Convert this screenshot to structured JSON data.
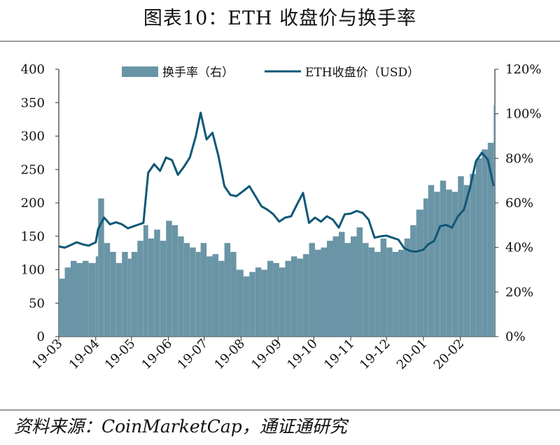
{
  "title": "图表10：ETH 收盘价与换手率",
  "source": "资料来源：CoinMarketCap，通证通研究",
  "colors": {
    "bars": "#6a95a6",
    "line": "#0f5777",
    "axis": "#333333"
  },
  "chart_data": {
    "type": "bar+line",
    "title": "图表10：ETH 收盘价与换手率",
    "xlabel": "",
    "ylabel": "",
    "x_ticks": [
      "19-03",
      "19-04",
      "19-05",
      "19-06",
      "19-07",
      "19-08",
      "19-09",
      "19-10",
      "19-11",
      "19-12",
      "20-01",
      "20-02"
    ],
    "y_left": {
      "min": 0,
      "max": 400,
      "ticks": [
        "0",
        "50",
        "100",
        "150",
        "200",
        "250",
        "300",
        "350",
        "400"
      ]
    },
    "y_right": {
      "min": 0,
      "max": 120,
      "ticks": [
        "0%",
        "20%",
        "40%",
        "60%",
        "80%",
        "100%",
        "120%"
      ]
    },
    "legend": {
      "position": "top",
      "entries": [
        "换手率（右）",
        "ETH收盘价（USD）"
      ]
    },
    "series": [
      {
        "name": "换手率（右）",
        "axis": "right",
        "type": "bar",
        "points": [
          [
            "19-03-01",
            26
          ],
          [
            "19-03-06",
            31
          ],
          [
            "19-03-11",
            34
          ],
          [
            "19-03-16",
            33
          ],
          [
            "19-03-21",
            34
          ],
          [
            "19-03-26",
            33
          ],
          [
            "19-04-01",
            36
          ],
          [
            "19-04-03",
            62
          ],
          [
            "19-04-08",
            42
          ],
          [
            "19-04-13",
            38
          ],
          [
            "19-04-18",
            33
          ],
          [
            "19-04-23",
            38
          ],
          [
            "19-04-28",
            35
          ],
          [
            "19-05-01",
            38
          ],
          [
            "19-05-06",
            43
          ],
          [
            "19-05-11",
            50
          ],
          [
            "19-05-15",
            44
          ],
          [
            "19-05-20",
            48
          ],
          [
            "19-05-25",
            43
          ],
          [
            "19-05-30",
            52
          ],
          [
            "19-06-04",
            50
          ],
          [
            "19-06-09",
            45
          ],
          [
            "19-06-14",
            42
          ],
          [
            "19-06-19",
            40
          ],
          [
            "19-06-24",
            38
          ],
          [
            "19-06-28",
            42
          ],
          [
            "19-07-03",
            36
          ],
          [
            "19-07-08",
            37
          ],
          [
            "19-07-13",
            34
          ],
          [
            "19-07-18",
            42
          ],
          [
            "19-07-23",
            38
          ],
          [
            "19-07-28",
            30
          ],
          [
            "19-08-03",
            27
          ],
          [
            "19-08-08",
            29
          ],
          [
            "19-08-13",
            31
          ],
          [
            "19-08-18",
            30
          ],
          [
            "19-08-23",
            34
          ],
          [
            "19-08-28",
            33
          ],
          [
            "19-09-02",
            31
          ],
          [
            "19-09-07",
            34
          ],
          [
            "19-09-12",
            36
          ],
          [
            "19-09-17",
            35
          ],
          [
            "19-09-22",
            37
          ],
          [
            "19-09-27",
            42
          ],
          [
            "19-10-02",
            39
          ],
          [
            "19-10-07",
            40
          ],
          [
            "19-10-12",
            43
          ],
          [
            "19-10-17",
            45
          ],
          [
            "19-10-22",
            47
          ],
          [
            "19-10-27",
            42
          ],
          [
            "19-11-01",
            45
          ],
          [
            "19-11-06",
            49
          ],
          [
            "19-11-11",
            42
          ],
          [
            "19-11-16",
            40
          ],
          [
            "19-11-21",
            38
          ],
          [
            "19-11-26",
            44
          ],
          [
            "19-12-01",
            40
          ],
          [
            "19-12-06",
            38
          ],
          [
            "19-12-11",
            39
          ],
          [
            "19-12-16",
            44
          ],
          [
            "19-12-21",
            50
          ],
          [
            "19-12-26",
            57
          ],
          [
            "20-01-01",
            62
          ],
          [
            "20-01-05",
            68
          ],
          [
            "20-01-10",
            65
          ],
          [
            "20-01-15",
            70
          ],
          [
            "20-01-20",
            66
          ],
          [
            "20-01-25",
            65
          ],
          [
            "20-01-30",
            72
          ],
          [
            "20-02-04",
            68
          ],
          [
            "20-02-09",
            73
          ],
          [
            "20-02-14",
            80
          ],
          [
            "20-02-19",
            84
          ],
          [
            "20-02-24",
            87
          ],
          [
            "20-02-29",
            104
          ]
        ]
      },
      {
        "name": "ETH收盘价（USD）",
        "axis": "left",
        "type": "line",
        "points": [
          [
            "19-03-01",
            135
          ],
          [
            "19-03-06",
            133
          ],
          [
            "19-03-11",
            137
          ],
          [
            "19-03-16",
            141
          ],
          [
            "19-03-21",
            138
          ],
          [
            "19-03-26",
            136
          ],
          [
            "19-04-01",
            141
          ],
          [
            "19-04-03",
            161
          ],
          [
            "19-04-08",
            178
          ],
          [
            "19-04-13",
            168
          ],
          [
            "19-04-18",
            171
          ],
          [
            "19-04-23",
            168
          ],
          [
            "19-04-28",
            162
          ],
          [
            "19-05-01",
            164
          ],
          [
            "19-05-06",
            167
          ],
          [
            "19-05-11",
            170
          ],
          [
            "19-05-15",
            245
          ],
          [
            "19-05-20",
            258
          ],
          [
            "19-05-25",
            248
          ],
          [
            "19-05-30",
            268
          ],
          [
            "19-06-04",
            264
          ],
          [
            "19-06-09",
            242
          ],
          [
            "19-06-14",
            254
          ],
          [
            "19-06-19",
            268
          ],
          [
            "19-06-24",
            300
          ],
          [
            "19-06-28",
            335
          ],
          [
            "19-07-03",
            295
          ],
          [
            "19-07-08",
            305
          ],
          [
            "19-07-13",
            270
          ],
          [
            "19-07-18",
            225
          ],
          [
            "19-07-23",
            212
          ],
          [
            "19-07-28",
            210
          ],
          [
            "19-08-03",
            218
          ],
          [
            "19-08-08",
            225
          ],
          [
            "19-08-13",
            210
          ],
          [
            "19-08-18",
            195
          ],
          [
            "19-08-23",
            190
          ],
          [
            "19-08-28",
            183
          ],
          [
            "19-09-02",
            172
          ],
          [
            "19-09-07",
            178
          ],
          [
            "19-09-12",
            180
          ],
          [
            "19-09-17",
            198
          ],
          [
            "19-09-22",
            215
          ],
          [
            "19-09-27",
            170
          ],
          [
            "19-10-02",
            178
          ],
          [
            "19-10-07",
            172
          ],
          [
            "19-10-12",
            180
          ],
          [
            "19-10-17",
            175
          ],
          [
            "19-10-22",
            163
          ],
          [
            "19-10-27",
            183
          ],
          [
            "19-11-01",
            184
          ],
          [
            "19-11-06",
            188
          ],
          [
            "19-11-11",
            185
          ],
          [
            "19-11-16",
            175
          ],
          [
            "19-11-21",
            148
          ],
          [
            "19-11-26",
            150
          ],
          [
            "19-12-01",
            151
          ],
          [
            "19-12-06",
            148
          ],
          [
            "19-12-11",
            145
          ],
          [
            "19-12-16",
            132
          ],
          [
            "19-12-21",
            128
          ],
          [
            "19-12-26",
            127
          ],
          [
            "20-01-01",
            130
          ],
          [
            "20-01-05",
            138
          ],
          [
            "20-01-10",
            143
          ],
          [
            "20-01-15",
            165
          ],
          [
            "20-01-20",
            167
          ],
          [
            "20-01-25",
            163
          ],
          [
            "20-01-30",
            180
          ],
          [
            "20-02-04",
            190
          ],
          [
            "20-02-09",
            222
          ],
          [
            "20-02-14",
            262
          ],
          [
            "20-02-19",
            275
          ],
          [
            "20-02-24",
            265
          ],
          [
            "20-02-29",
            225
          ]
        ]
      }
    ]
  }
}
